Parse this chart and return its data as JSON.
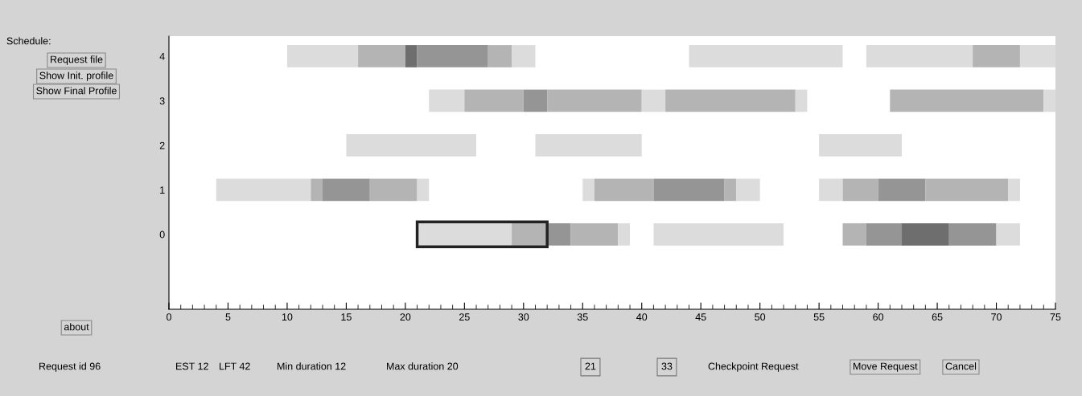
{
  "chart_data": {
    "type": "bar",
    "orientation": "horizontal",
    "categories": [
      "4",
      "3",
      "2",
      "1",
      "0"
    ],
    "xlim": [
      0,
      75
    ],
    "xticks": [
      0,
      5,
      10,
      15,
      20,
      25,
      30,
      35,
      40,
      45,
      50,
      55,
      60,
      65,
      70,
      75
    ],
    "grid": false,
    "series": [
      {
        "base": [
          10,
          22,
          15,
          4,
          21
        ],
        "values": [
          6,
          3,
          11,
          8,
          8
        ],
        "colors": [
          "#dcdcdc",
          "#dcdcdc",
          "#dcdcdc",
          "#dcdcdc",
          "#dcdcdc"
        ]
      },
      {
        "base": [
          16,
          25,
          31,
          12,
          29
        ],
        "values": [
          4,
          5,
          9,
          1,
          3
        ],
        "colors": [
          "#b4b4b4",
          "#b4b4b4",
          "#dcdcdc",
          "#b4b4b4",
          "#b4b4b4"
        ]
      },
      {
        "base": [
          20,
          30,
          55,
          13,
          32
        ],
        "values": [
          1,
          2,
          7,
          4,
          2
        ],
        "colors": [
          "#6e6e6e",
          "#959595",
          "#dcdcdc",
          "#959595",
          "#959595"
        ]
      },
      {
        "base": [
          21,
          32,
          null,
          17,
          34
        ],
        "values": [
          6,
          8,
          null,
          4,
          4
        ],
        "colors": [
          "#959595",
          "#b4b4b4",
          "#dcdcdc",
          "#b4b4b4",
          "#b4b4b4"
        ]
      },
      {
        "base": [
          27,
          40,
          null,
          21,
          38
        ],
        "values": [
          2,
          2,
          null,
          1,
          1
        ],
        "colors": [
          "#b4b4b4",
          "#dcdcdc",
          "#dcdcdc",
          "#dcdcdc",
          "#dcdcdc"
        ]
      },
      {
        "base": [
          29,
          42,
          null,
          35,
          41
        ],
        "values": [
          2,
          11,
          null,
          1,
          11
        ],
        "colors": [
          "#dcdcdc",
          "#b4b4b4",
          "#dcdcdc",
          "#dcdcdc",
          "#dcdcdc"
        ]
      },
      {
        "base": [
          44,
          53,
          null,
          36,
          57
        ],
        "values": [
          13,
          1,
          null,
          5,
          2
        ],
        "colors": [
          "#dcdcdc",
          "#dcdcdc",
          "#dcdcdc",
          "#b4b4b4",
          "#b4b4b4"
        ]
      },
      {
        "base": [
          59,
          61,
          null,
          41,
          59
        ],
        "values": [
          9,
          13,
          null,
          6,
          3
        ],
        "colors": [
          "#dcdcdc",
          "#b4b4b4",
          "#dcdcdc",
          "#959595",
          "#959595"
        ]
      },
      {
        "base": [
          68,
          74,
          null,
          47,
          62
        ],
        "values": [
          4,
          1,
          null,
          1,
          4
        ],
        "colors": [
          "#b4b4b4",
          "#dcdcdc",
          "#dcdcdc",
          "#b4b4b4",
          "#6e6e6e"
        ]
      },
      {
        "base": [
          72,
          null,
          null,
          48,
          66
        ],
        "values": [
          3,
          null,
          null,
          2,
          4
        ],
        "colors": [
          "#dcdcdc",
          "#dcdcdc",
          "#dcdcdc",
          "#dcdcdc",
          "#959595"
        ]
      },
      {
        "base": [
          null,
          null,
          null,
          55,
          70
        ],
        "values": [
          null,
          null,
          null,
          2,
          2
        ],
        "colors": [
          "#dcdcdc",
          "#dcdcdc",
          "#dcdcdc",
          "#dcdcdc",
          "#dcdcdc"
        ]
      },
      {
        "base": [
          null,
          null,
          null,
          57,
          null
        ],
        "values": [
          null,
          null,
          null,
          3,
          null
        ],
        "colors": [
          "#b4b4b4",
          "#b4b4b4",
          "#b4b4b4",
          "#b4b4b4",
          "#b4b4b4"
        ]
      },
      {
        "base": [
          null,
          null,
          null,
          60,
          null
        ],
        "values": [
          null,
          null,
          null,
          4,
          null
        ],
        "colors": [
          "#959595",
          "#959595",
          "#959595",
          "#959595",
          "#959595"
        ]
      },
      {
        "base": [
          null,
          null,
          null,
          64,
          null
        ],
        "values": [
          null,
          null,
          null,
          7,
          null
        ],
        "colors": [
          "#b4b4b4",
          "#b4b4b4",
          "#b4b4b4",
          "#b4b4b4",
          "#b4b4b4"
        ]
      },
      {
        "base": [
          null,
          null,
          null,
          71,
          null
        ],
        "values": [
          null,
          null,
          null,
          1,
          null
        ],
        "colors": [
          "#dcdcdc",
          "#dcdcdc",
          "#dcdcdc",
          "#dcdcdc",
          "#dcdcdc"
        ]
      }
    ],
    "annotations": [
      "Schedule:",
      "Request file",
      "Show Init. profile",
      "Show Final Profile",
      "about",
      "Request id 96",
      "EST 12",
      "LFT 42",
      "Min duration 12",
      "Max duration 20",
      "21",
      "33",
      "Checkpoint Request",
      "Move Request",
      "Cancel"
    ]
  }
}
